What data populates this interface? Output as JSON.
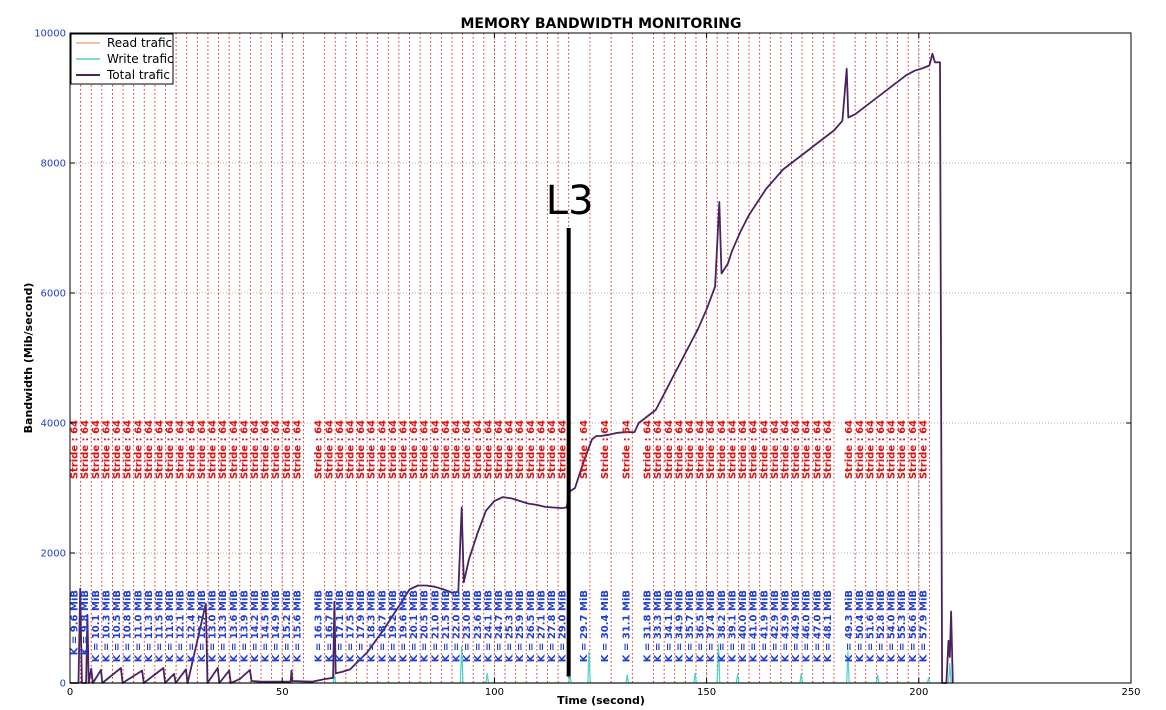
{
  "chart_data": {
    "type": "line",
    "title": "MEMORY BANDWIDTH MONITORING",
    "xlabel": "Time (second)",
    "ylabel": "Bandwidth (Mib/second)",
    "xlim": [
      0,
      250
    ],
    "ylim": [
      0,
      10000
    ],
    "x_ticks": [
      0,
      50,
      100,
      150,
      200,
      250
    ],
    "y_ticks": [
      0,
      2000,
      4000,
      6000,
      8000,
      10000
    ],
    "grid": true,
    "legend_position": "top-left",
    "colors": {
      "read": "#f4a582",
      "write": "#4fd1c5",
      "total": "#4a2360",
      "stride": "#e01010",
      "k": "#1f3fd4",
      "l3": "#000000"
    },
    "legend": [
      {
        "name": "Read trafic",
        "color": "#f4a582"
      },
      {
        "name": "Write trafic",
        "color": "#4fd1c5"
      },
      {
        "name": "Total trafic",
        "color": "#4a2360"
      }
    ],
    "annotation": {
      "text": "L3",
      "x": 117.5,
      "y_top": 7000
    },
    "stride_label": "Stride : 64",
    "run_markers": [
      {
        "x": 2.5,
        "k": "K = 9.6 MiB"
      },
      {
        "x": 5,
        "k": "K = 9.8 MiB"
      },
      {
        "x": 7.5,
        "k": "K = 10.1 MiB"
      },
      {
        "x": 10,
        "k": "K = 10.3 MiB"
      },
      {
        "x": 12.5,
        "k": "K = 10.5 MiB"
      },
      {
        "x": 15,
        "k": "K = 10.8 MiB"
      },
      {
        "x": 17.5,
        "k": "K = 11.0 MiB"
      },
      {
        "x": 20,
        "k": "K = 11.3 MiB"
      },
      {
        "x": 22.5,
        "k": "K = 11.5 MiB"
      },
      {
        "x": 25,
        "k": "K = 11.8 MiB"
      },
      {
        "x": 27.5,
        "k": "K = 12.1 MiB"
      },
      {
        "x": 30,
        "k": "K = 12.4 MiB"
      },
      {
        "x": 32.5,
        "k": "K = 12.7 MiB"
      },
      {
        "x": 35,
        "k": "K = 13.0 MiB"
      },
      {
        "x": 37.5,
        "k": "K = 13.3 MiB"
      },
      {
        "x": 40,
        "k": "K = 13.6 MiB"
      },
      {
        "x": 42.5,
        "k": "K = 13.9 MiB"
      },
      {
        "x": 45,
        "k": "K = 14.2 MiB"
      },
      {
        "x": 47.5,
        "k": "K = 14.5 MiB"
      },
      {
        "x": 50,
        "k": "K = 14.9 MiB"
      },
      {
        "x": 52.5,
        "k": "K = 15.2 MiB"
      },
      {
        "x": 55,
        "k": "K = 15.6 MiB"
      },
      {
        "x": 60,
        "k": "K = 16.3 MiB"
      },
      {
        "x": 62.5,
        "k": "K = 16.7 MiB"
      },
      {
        "x": 65,
        "k": "K = 17.1 MiB"
      },
      {
        "x": 67.5,
        "k": "K = 17.5 MiB"
      },
      {
        "x": 70,
        "k": "K = 17.9 MiB"
      },
      {
        "x": 72.5,
        "k": "K = 18.3 MiB"
      },
      {
        "x": 75,
        "k": "K = 18.7 MiB"
      },
      {
        "x": 77.5,
        "k": "K = 19.2 MiB"
      },
      {
        "x": 80,
        "k": "K = 19.6 MiB"
      },
      {
        "x": 82.5,
        "k": "K = 20.1 MiB"
      },
      {
        "x": 85,
        "k": "K = 20.5 MiB"
      },
      {
        "x": 87.5,
        "k": "K = 21.0 MiB"
      },
      {
        "x": 90,
        "k": "K = 21.5 MiB"
      },
      {
        "x": 92.5,
        "k": "K = 22.0 MiB"
      },
      {
        "x": 95,
        "k": "K = 23.0 MiB"
      },
      {
        "x": 97.5,
        "k": "K = 23.6 MiB"
      },
      {
        "x": 100,
        "k": "K = 24.1 MiB"
      },
      {
        "x": 102.5,
        "k": "K = 24.7 MiB"
      },
      {
        "x": 105,
        "k": "K = 25.3 MiB"
      },
      {
        "x": 107.5,
        "k": "K = 25.9 MiB"
      },
      {
        "x": 110,
        "k": "K = 26.5 MiB"
      },
      {
        "x": 112.5,
        "k": "K = 27.1 MiB"
      },
      {
        "x": 115,
        "k": "K = 27.8 MiB"
      },
      {
        "x": 117.5,
        "k": "K = 29.0 MiB"
      },
      {
        "x": 122.5,
        "k": "K = 29.7 MiB"
      },
      {
        "x": 127.5,
        "k": "K = 30.4 MiB"
      },
      {
        "x": 132.5,
        "k": "K = 31.1 MiB"
      },
      {
        "x": 137.5,
        "k": "K = 31.8 MiB"
      },
      {
        "x": 140,
        "k": "K = 33.3 MiB"
      },
      {
        "x": 142.5,
        "k": "K = 34.1 MiB"
      },
      {
        "x": 145,
        "k": "K = 34.9 MiB"
      },
      {
        "x": 147.5,
        "k": "K = 35.7 MiB"
      },
      {
        "x": 150,
        "k": "K = 36.5 MiB"
      },
      {
        "x": 152.5,
        "k": "K = 37.4 MiB"
      },
      {
        "x": 155,
        "k": "K = 38.2 MiB"
      },
      {
        "x": 157.5,
        "k": "K = 39.1 MiB"
      },
      {
        "x": 160,
        "k": "K = 40.0 MiB"
      },
      {
        "x": 162.5,
        "k": "K = 41.0 MiB"
      },
      {
        "x": 165,
        "k": "K = 41.9 MiB"
      },
      {
        "x": 167.5,
        "k": "K = 42.9 MiB"
      },
      {
        "x": 170,
        "k": "K = 43.9 MiB"
      },
      {
        "x": 172.5,
        "k": "K = 44.9 MiB"
      },
      {
        "x": 175,
        "k": "K = 46.0 MiB"
      },
      {
        "x": 177.5,
        "k": "K = 47.0 MiB"
      },
      {
        "x": 180,
        "k": "K = 48.1 MiB"
      },
      {
        "x": 185,
        "k": "K = 49.3 MiB"
      },
      {
        "x": 187.5,
        "k": "K = 50.4 MiB"
      },
      {
        "x": 190,
        "k": "K = 51.6 MiB"
      },
      {
        "x": 192.5,
        "k": "K = 52.8 MiB"
      },
      {
        "x": 195,
        "k": "K = 54.0 MiB"
      },
      {
        "x": 197.5,
        "k": "K = 55.3 MiB"
      },
      {
        "x": 200,
        "k": "K = 56.6 MiB"
      },
      {
        "x": 202.5,
        "k": "K = 57.9 MiB"
      }
    ],
    "series": [
      {
        "name": "Total trafic",
        "points": [
          [
            0,
            0
          ],
          [
            2,
            0
          ],
          [
            2.4,
            1450
          ],
          [
            2.8,
            0
          ],
          [
            3.8,
            0
          ],
          [
            4.1,
            1050
          ],
          [
            4.4,
            0
          ],
          [
            5,
            220
          ],
          [
            5.4,
            0
          ],
          [
            7.3,
            200
          ],
          [
            7.6,
            0
          ],
          [
            12,
            230
          ],
          [
            12.4,
            0
          ],
          [
            17,
            190
          ],
          [
            17.4,
            0
          ],
          [
            22,
            230
          ],
          [
            22.4,
            0
          ],
          [
            24.5,
            140
          ],
          [
            24.9,
            0
          ],
          [
            27.3,
            210
          ],
          [
            27.7,
            0
          ],
          [
            32,
            1220
          ],
          [
            32.4,
            0
          ],
          [
            34.8,
            230
          ],
          [
            35.2,
            0
          ],
          [
            37.5,
            190
          ],
          [
            37.9,
            0
          ],
          [
            40,
            60
          ],
          [
            42.4,
            200
          ],
          [
            42.8,
            30
          ],
          [
            45,
            20
          ],
          [
            52,
            20
          ],
          [
            52.2,
            190
          ],
          [
            52.4,
            30
          ],
          [
            57,
            20
          ],
          [
            60,
            60
          ],
          [
            62,
            80
          ],
          [
            62.3,
            1250
          ],
          [
            62.6,
            150
          ],
          [
            64,
            170
          ],
          [
            66,
            210
          ],
          [
            68,
            340
          ],
          [
            70,
            470
          ],
          [
            72,
            650
          ],
          [
            74,
            830
          ],
          [
            76,
            1030
          ],
          [
            78,
            1230
          ],
          [
            80,
            1440
          ],
          [
            82,
            1500
          ],
          [
            84,
            1500
          ],
          [
            86,
            1480
          ],
          [
            88,
            1440
          ],
          [
            90,
            1390
          ],
          [
            91.5,
            1400
          ],
          [
            92.3,
            2700
          ],
          [
            92.8,
            1550
          ],
          [
            94,
            1900
          ],
          [
            96,
            2300
          ],
          [
            98,
            2650
          ],
          [
            100,
            2800
          ],
          [
            102,
            2860
          ],
          [
            104,
            2840
          ],
          [
            106,
            2800
          ],
          [
            108,
            2760
          ],
          [
            110,
            2740
          ],
          [
            112,
            2710
          ],
          [
            114,
            2700
          ],
          [
            116,
            2690
          ],
          [
            117,
            2700
          ],
          [
            117.8,
            2950
          ],
          [
            119,
            3000
          ],
          [
            121,
            3400
          ],
          [
            123,
            3750
          ],
          [
            124,
            3800
          ],
          [
            125,
            3800
          ],
          [
            127,
            3820
          ],
          [
            129,
            3850
          ],
          [
            131,
            3860
          ],
          [
            133,
            3860
          ],
          [
            134,
            4000
          ],
          [
            135,
            4050
          ],
          [
            136,
            4100
          ],
          [
            138,
            4200
          ],
          [
            140,
            4450
          ],
          [
            142,
            4700
          ],
          [
            144,
            4950
          ],
          [
            146,
            5200
          ],
          [
            148,
            5450
          ],
          [
            150,
            5750
          ],
          [
            152,
            6100
          ],
          [
            153,
            7400
          ],
          [
            153.5,
            6300
          ],
          [
            155,
            6450
          ],
          [
            156,
            6650
          ],
          [
            158,
            6950
          ],
          [
            160,
            7200
          ],
          [
            162,
            7400
          ],
          [
            164,
            7600
          ],
          [
            166,
            7750
          ],
          [
            168,
            7900
          ],
          [
            170,
            8000
          ],
          [
            172,
            8100
          ],
          [
            174,
            8200
          ],
          [
            176,
            8300
          ],
          [
            178,
            8400
          ],
          [
            180,
            8500
          ],
          [
            182,
            8650
          ],
          [
            183,
            9450
          ],
          [
            183.4,
            8700
          ],
          [
            185,
            8750
          ],
          [
            187,
            8850
          ],
          [
            189,
            8950
          ],
          [
            191,
            9050
          ],
          [
            193,
            9150
          ],
          [
            195,
            9250
          ],
          [
            197,
            9350
          ],
          [
            199,
            9420
          ],
          [
            201,
            9460
          ],
          [
            202.5,
            9500
          ],
          [
            203.2,
            9680
          ],
          [
            203.8,
            9550
          ],
          [
            205,
            9550
          ],
          [
            205.5,
            0
          ],
          [
            206.5,
            0
          ],
          [
            207,
            650
          ],
          [
            207.3,
            400
          ],
          [
            207.6,
            1100
          ],
          [
            208,
            0
          ]
        ]
      },
      {
        "name": "Write trafic",
        "points": [
          [
            0,
            0
          ],
          [
            62,
            0
          ],
          [
            62.3,
            120
          ],
          [
            62.6,
            0
          ],
          [
            92,
            0
          ],
          [
            92.3,
            560
          ],
          [
            92.6,
            0
          ],
          [
            98,
            0
          ],
          [
            98.3,
            150
          ],
          [
            98.6,
            0
          ],
          [
            117.5,
            0
          ],
          [
            117.8,
            120
          ],
          [
            118.1,
            0
          ],
          [
            122,
            0
          ],
          [
            122.3,
            480
          ],
          [
            122.6,
            0
          ],
          [
            131,
            0
          ],
          [
            131.3,
            120
          ],
          [
            131.6,
            0
          ],
          [
            147,
            0
          ],
          [
            147.3,
            150
          ],
          [
            147.6,
            0
          ],
          [
            152.5,
            0
          ],
          [
            152.8,
            600
          ],
          [
            153.1,
            0
          ],
          [
            157,
            0
          ],
          [
            157.3,
            130
          ],
          [
            157.6,
            0
          ],
          [
            172,
            0
          ],
          [
            172.3,
            140
          ],
          [
            172.6,
            0
          ],
          [
            183,
            0
          ],
          [
            183.3,
            480
          ],
          [
            183.6,
            0
          ],
          [
            190,
            0
          ],
          [
            190.3,
            120
          ],
          [
            190.6,
            0
          ],
          [
            202,
            0
          ],
          [
            202.3,
            80
          ],
          [
            202.6,
            0
          ],
          [
            207,
            0
          ],
          [
            207.3,
            300
          ],
          [
            207.6,
            0
          ],
          [
            208,
            0
          ]
        ]
      },
      {
        "name": "Read trafic",
        "points": [
          [
            0,
            0
          ],
          [
            208,
            0
          ]
        ]
      }
    ]
  }
}
